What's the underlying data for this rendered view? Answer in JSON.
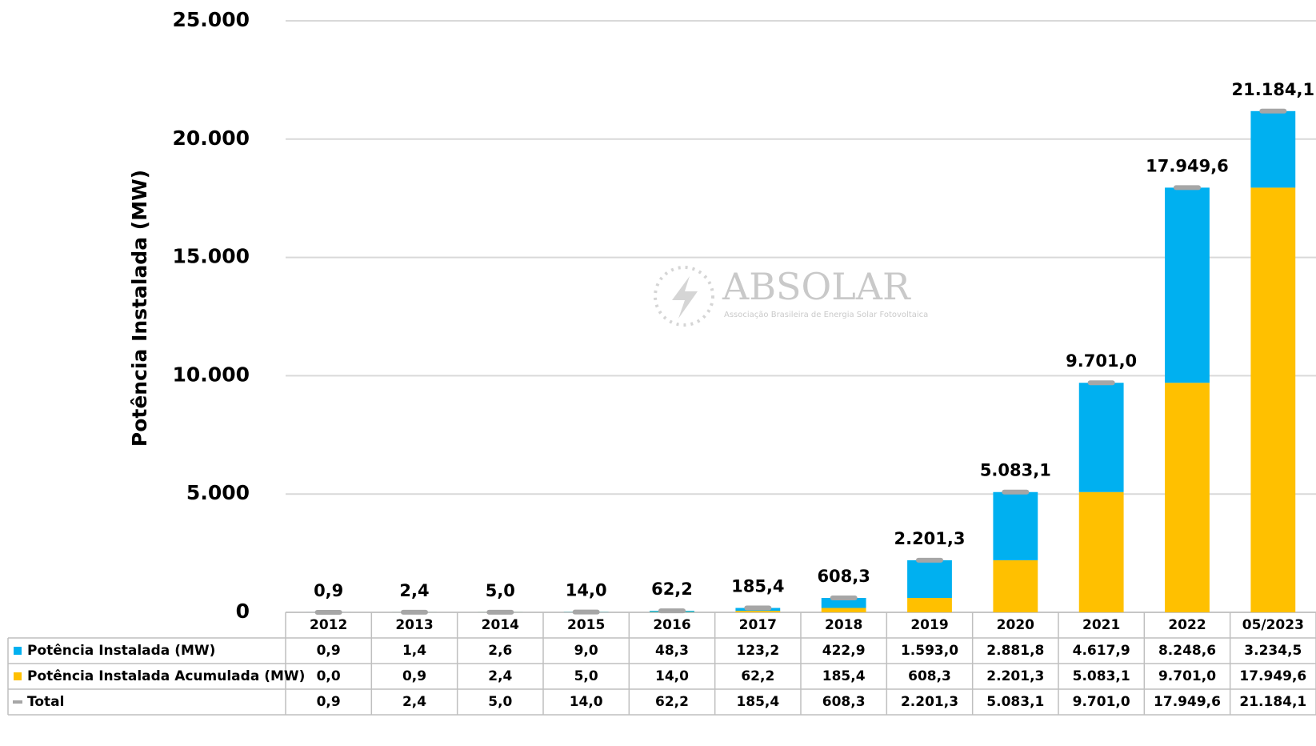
{
  "chart_data": {
    "type": "bar",
    "stacked": true,
    "ylabel": "Potência Instalada (MW)",
    "watermark": {
      "name": "ABSOLAR",
      "tagline": "Associação Brasileira de Energia Solar Fotovoltaica"
    },
    "categories": [
      "2012",
      "2013",
      "2014",
      "2015",
      "2016",
      "2017",
      "2018",
      "2019",
      "2020",
      "2021",
      "2022",
      "05/2023"
    ],
    "series": [
      {
        "name": "Potência Instalada (MW)",
        "color": "#00b0f0",
        "values": [
          0.9,
          1.4,
          2.6,
          9.0,
          48.3,
          123.2,
          422.9,
          1593.0,
          2881.8,
          4617.9,
          8248.6,
          3234.5
        ],
        "value_labels": [
          "0,9",
          "1,4",
          "2,6",
          "9,0",
          "48,3",
          "123,2",
          "422,9",
          "1.593,0",
          "2.881,8",
          "4.617,9",
          "8.248,6",
          "3.234,5"
        ]
      },
      {
        "name": "Potência Instalada Acumulada (MW)",
        "color": "#ffc000",
        "values": [
          0.0,
          0.9,
          2.4,
          5.0,
          14.0,
          62.2,
          185.4,
          608.3,
          2201.3,
          5083.1,
          9701.0,
          17949.6
        ],
        "value_labels": [
          "0,0",
          "0,9",
          "2,4",
          "5,0",
          "14,0",
          "62,2",
          "185,4",
          "608,3",
          "2.201,3",
          "5.083,1",
          "9.701,0",
          "17.949,6"
        ]
      },
      {
        "name": "Total",
        "color": "#a6a6a6",
        "type": "marker",
        "values": [
          0.9,
          2.4,
          5.0,
          14.0,
          62.2,
          185.4,
          608.3,
          2201.3,
          5083.1,
          9701.0,
          17949.6,
          21184.1
        ],
        "value_labels": [
          "0,9",
          "2,4",
          "5,0",
          "14,0",
          "62,2",
          "185,4",
          "608,3",
          "2.201,3",
          "5.083,1",
          "9.701,0",
          "17.949,6",
          "21.184,1"
        ]
      }
    ],
    "ylim": [
      0,
      25000
    ],
    "yticks": [
      0,
      {
        "value": 5000,
        "label": "5.000"
      },
      {
        "value": 10000,
        "label": "10.000"
      },
      {
        "value": 15000,
        "label": "15.000"
      },
      {
        "value": 20000,
        "label": "20.000"
      },
      {
        "value": 25000,
        "label": "25.000"
      }
    ],
    "grid": true
  }
}
